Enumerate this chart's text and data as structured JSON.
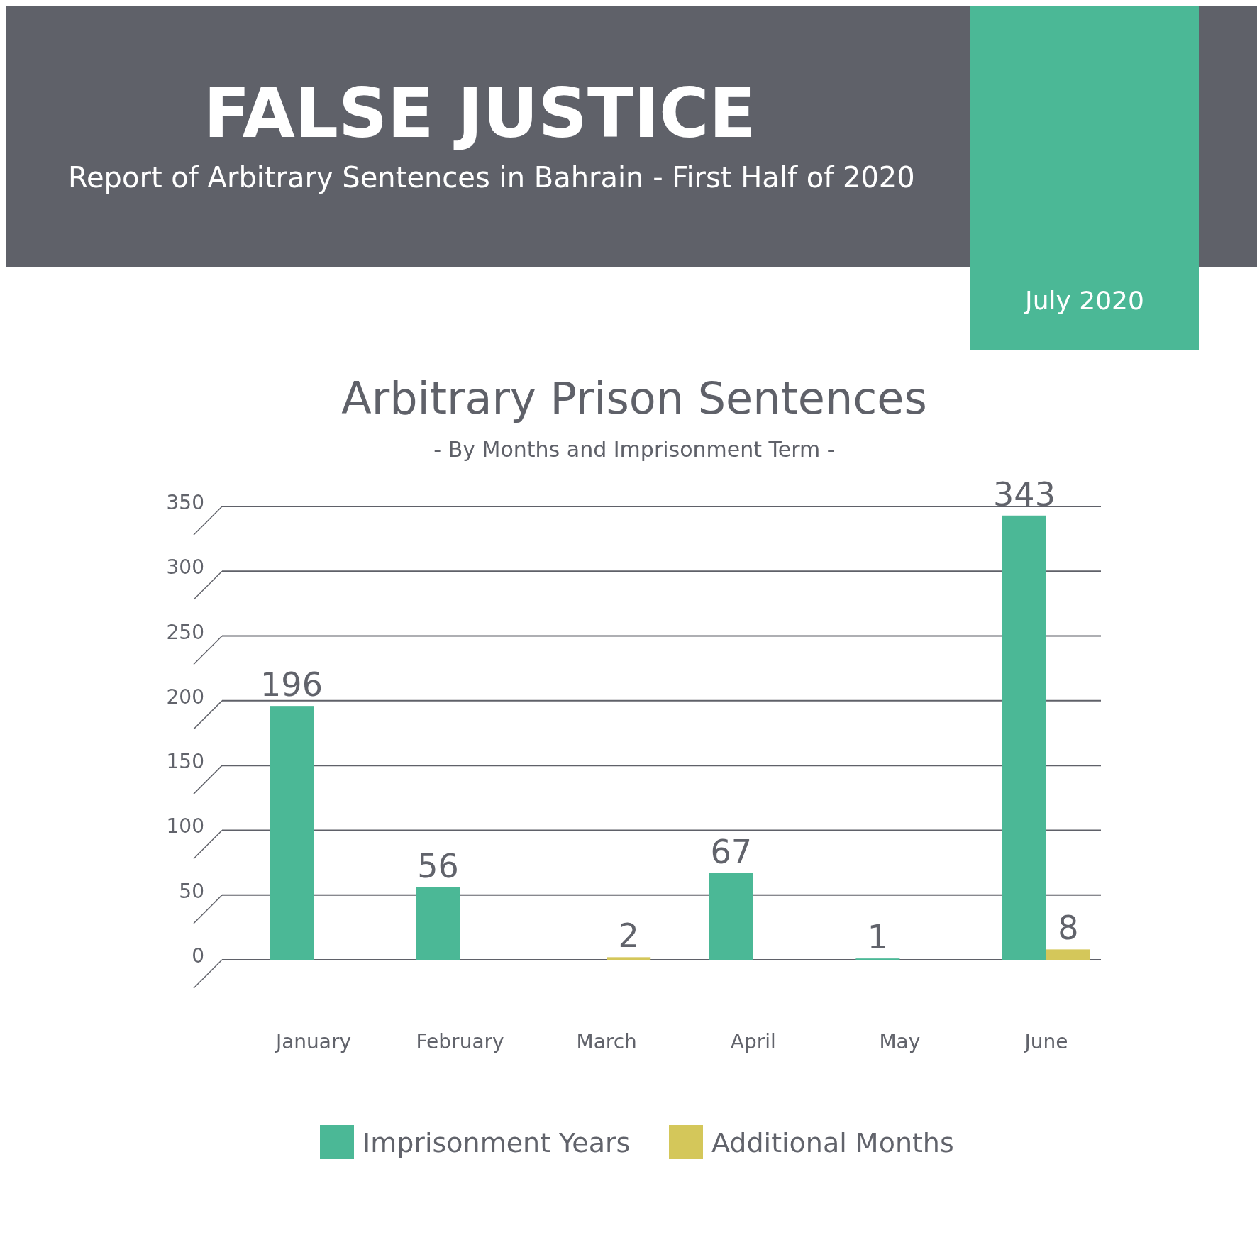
{
  "chart_data": {
    "type": "bar",
    "title": "Arbitrary Prison Sentences",
    "subtitle": "- By Months and Imprisonment Term -",
    "annotations": [
      "FALSE JUSTICE",
      "Report of Arbitrary Sentences in Bahrain - First Half of 2020",
      "July 2020"
    ],
    "categories": [
      "January",
      "February",
      "March",
      "April",
      "May",
      "June"
    ],
    "series": [
      {
        "name": "Imprisonment Years",
        "color": "#4bb896",
        "values": [
          196,
          56,
          0,
          67,
          1,
          343
        ],
        "value_labels": [
          "196",
          "56",
          null,
          "67",
          "1",
          "343"
        ]
      },
      {
        "name": "Additional Months",
        "color": "#d4c75a",
        "values": [
          0,
          0,
          2,
          0,
          0,
          8
        ],
        "value_labels": [
          null,
          null,
          "2",
          null,
          null,
          "8"
        ]
      }
    ],
    "ylim": [
      0,
      350
    ],
    "yticks": [
      0,
      50,
      100,
      150,
      200,
      250,
      300,
      350
    ],
    "grid": "y",
    "legend": "bottom"
  }
}
